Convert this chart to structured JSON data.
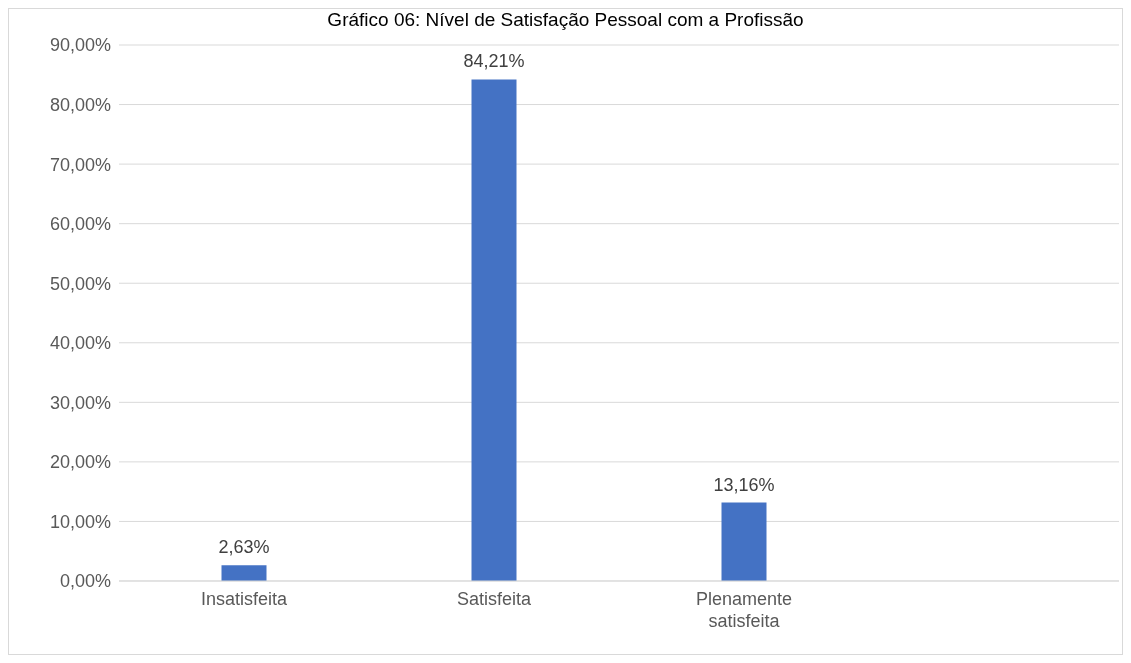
{
  "chart_data": {
    "type": "bar",
    "title": "Gráfico 06: Nível de Satisfação Pessoal com a Profissão",
    "categories": [
      "Insatisfeita",
      "Satisfeita",
      "Plenamente satisfeita",
      null
    ],
    "values": [
      2.63,
      84.21,
      13.16,
      null
    ],
    "value_labels": [
      "2,63%",
      "84,21%",
      "13,16%",
      null
    ],
    "color": "#4472c4",
    "ylim": [
      0,
      90
    ],
    "yticks": [
      {
        "value": 0,
        "label": "0,00%"
      },
      {
        "value": 10,
        "label": "10,00%"
      },
      {
        "value": 20,
        "label": "20,00%"
      },
      {
        "value": 30,
        "label": "30,00%"
      },
      {
        "value": 40,
        "label": "40,00%"
      },
      {
        "value": 50,
        "label": "50,00%"
      },
      {
        "value": 60,
        "label": "60,00%"
      },
      {
        "value": 70,
        "label": "70,00%"
      },
      {
        "value": 80,
        "label": "80,00%"
      },
      {
        "value": 90,
        "label": "90,00%"
      }
    ],
    "grid": "y"
  }
}
